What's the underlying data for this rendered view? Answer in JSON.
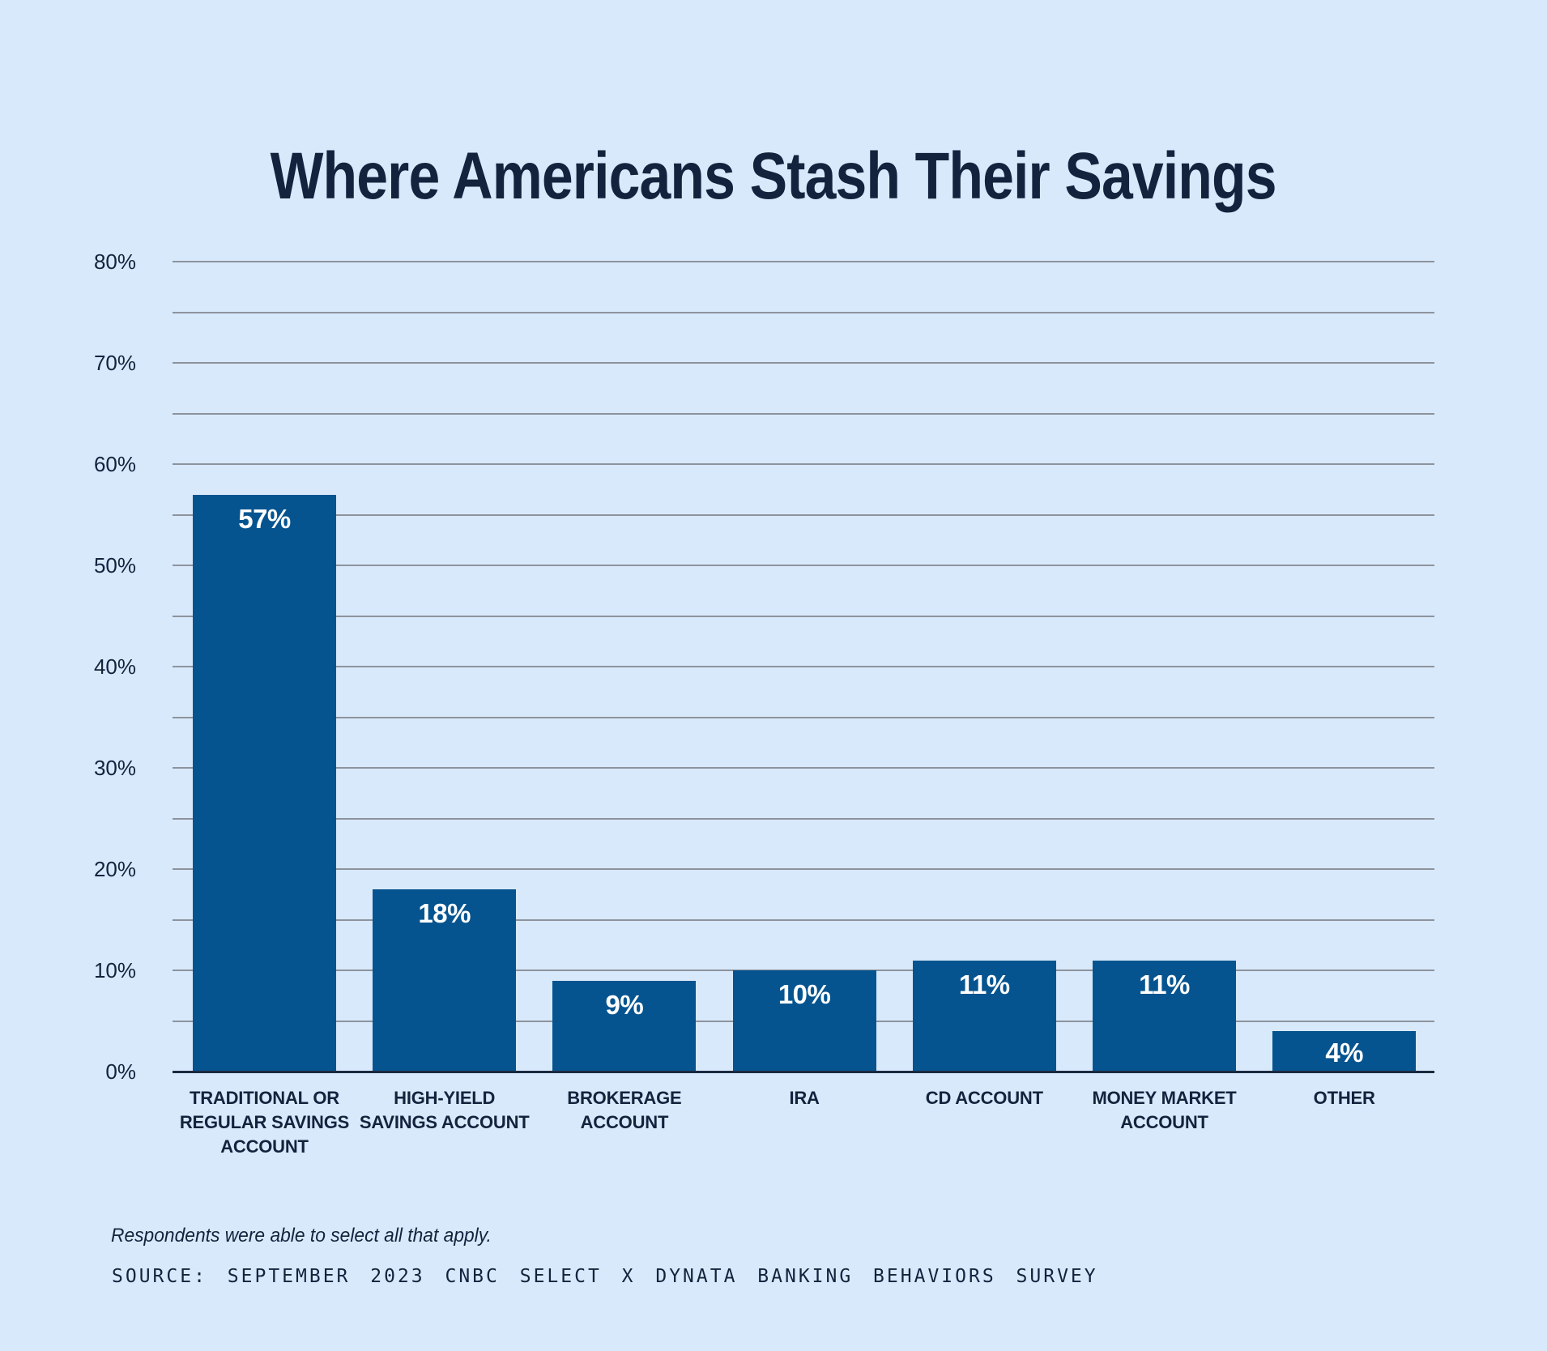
{
  "title": "Where Americans Stash Their Savings",
  "footnote": "Respondents were able to select all that apply.",
  "source": "SOURCE: SEPTEMBER 2023 CNBC SELECT X DYNATA BANKING BEHAVIORS SURVEY",
  "colors": {
    "background": "#d8e9fb",
    "bar": "#05548f",
    "text_dark": "#14233d",
    "gridline": "#8d939d",
    "axis_line": "#1b2940",
    "value_label": "#ffffff"
  },
  "chart_data": {
    "type": "bar",
    "title": "Where Americans Stash Their Savings",
    "categories": [
      "TRADITIONAL OR\nREGULAR SAVINGS\nACCOUNT",
      "HIGH-YIELD\nSAVINGS ACCOUNT",
      "BROKERAGE\nACCOUNT",
      "IRA",
      "CD ACCOUNT",
      "MONEY MARKET\nACCOUNT",
      "OTHER"
    ],
    "values": [
      57,
      18,
      9,
      10,
      11,
      11,
      4
    ],
    "value_labels": [
      "57%",
      "18%",
      "9%",
      "10%",
      "11%",
      "11%",
      "4%"
    ],
    "xlabel": "",
    "ylabel": "",
    "ylim": [
      0,
      80
    ],
    "ytick_interval": 10,
    "ytick_labels": [
      "80%",
      "70%",
      "60%",
      "50%",
      "40%",
      "30%",
      "20%",
      "10%",
      "0%"
    ],
    "gridline_interval": 5,
    "grid": true,
    "legend": false,
    "bars_overlap_grid": true
  }
}
